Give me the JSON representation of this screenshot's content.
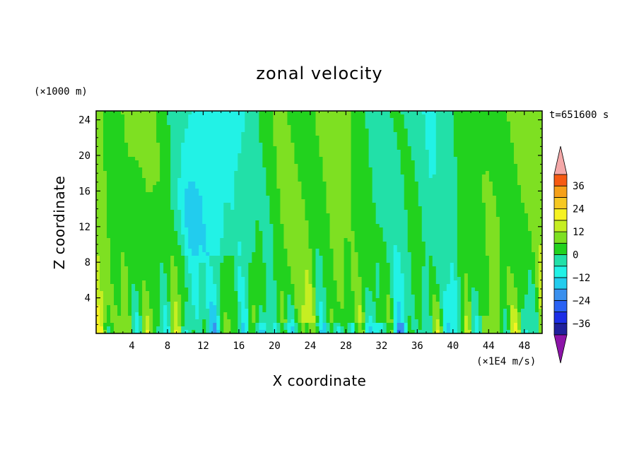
{
  "chart_data": {
    "type": "heatmap",
    "title": "zonal velocity",
    "xlabel": "X coordinate",
    "ylabel": "Z coordinate",
    "x_unit": "(×1E4 m/s)",
    "y_unit": "(×1000 m)",
    "time_label": "t=651600 s",
    "xlim": [
      0,
      50
    ],
    "ylim": [
      0,
      25
    ],
    "x_ticks": [
      4,
      8,
      12,
      16,
      20,
      24,
      28,
      32,
      36,
      40,
      44,
      48
    ],
    "y_ticks": [
      4,
      8,
      12,
      16,
      20,
      24
    ],
    "colorbar": {
      "labels": [
        "36",
        "24",
        "12",
        "0",
        "−12",
        "−24",
        "−36"
      ],
      "label_values": [
        36,
        24,
        12,
        0,
        -12,
        -24,
        -36
      ],
      "levels": [
        -42,
        -36,
        -30,
        -24,
        -18,
        -12,
        -6,
        0,
        6,
        12,
        18,
        24,
        30,
        36,
        42
      ],
      "colors": [
        "#5a1e96",
        "#20209c",
        "#1c2ee6",
        "#2a62f4",
        "#3a90ee",
        "#22ccee",
        "#22f2e6",
        "#22e0a8",
        "#22d21e",
        "#7ee022",
        "#c6ee22",
        "#f6f222",
        "#f6c822",
        "#f6a018",
        "#f65a12",
        "#e82c10",
        "#d81818"
      ],
      "low_end_color": "#8c14a8",
      "high_end_color": "#f4a8a8"
    }
  }
}
